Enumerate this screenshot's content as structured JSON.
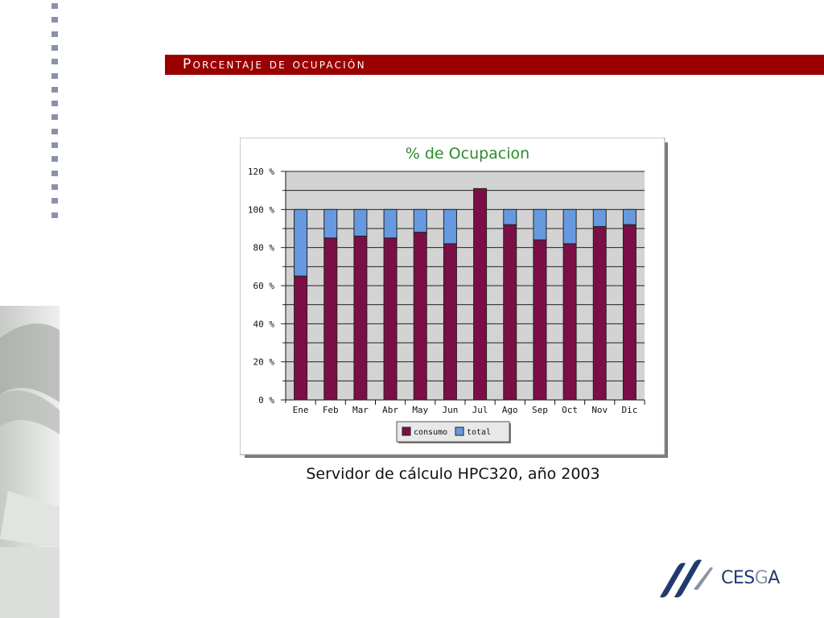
{
  "slide": {
    "title": "Porcentaje de ocupación",
    "caption": "Servidor de cálculo HPC320, año 2003",
    "logo_text": "CESGA",
    "colors": {
      "title_bar": "#990000",
      "consumo": "#7b0f45",
      "total": "#6699e0",
      "plot_bg": "#d3d3d3",
      "chart_title": "#2e8b2e"
    }
  },
  "chart_data": {
    "type": "bar",
    "stacked": true,
    "title": "% de Ocupacion",
    "categories": [
      "Ene",
      "Feb",
      "Mar",
      "Abr",
      "May",
      "Jun",
      "Jul",
      "Ago",
      "Sep",
      "Oct",
      "Nov",
      "Dic"
    ],
    "series": [
      {
        "name": "consumo",
        "values": [
          65,
          85,
          86,
          85,
          88,
          82,
          111,
          92,
          84,
          82,
          91,
          92
        ]
      },
      {
        "name": "total",
        "values": [
          100,
          100,
          100,
          100,
          100,
          100,
          100,
          100,
          100,
          100,
          100,
          100
        ]
      }
    ],
    "yticks": [
      "0 %",
      "20 %",
      "40 %",
      "60 %",
      "80 %",
      "100 %",
      "120 %"
    ],
    "ylim": [
      0,
      120
    ],
    "grid": true,
    "legend": "bottom"
  }
}
